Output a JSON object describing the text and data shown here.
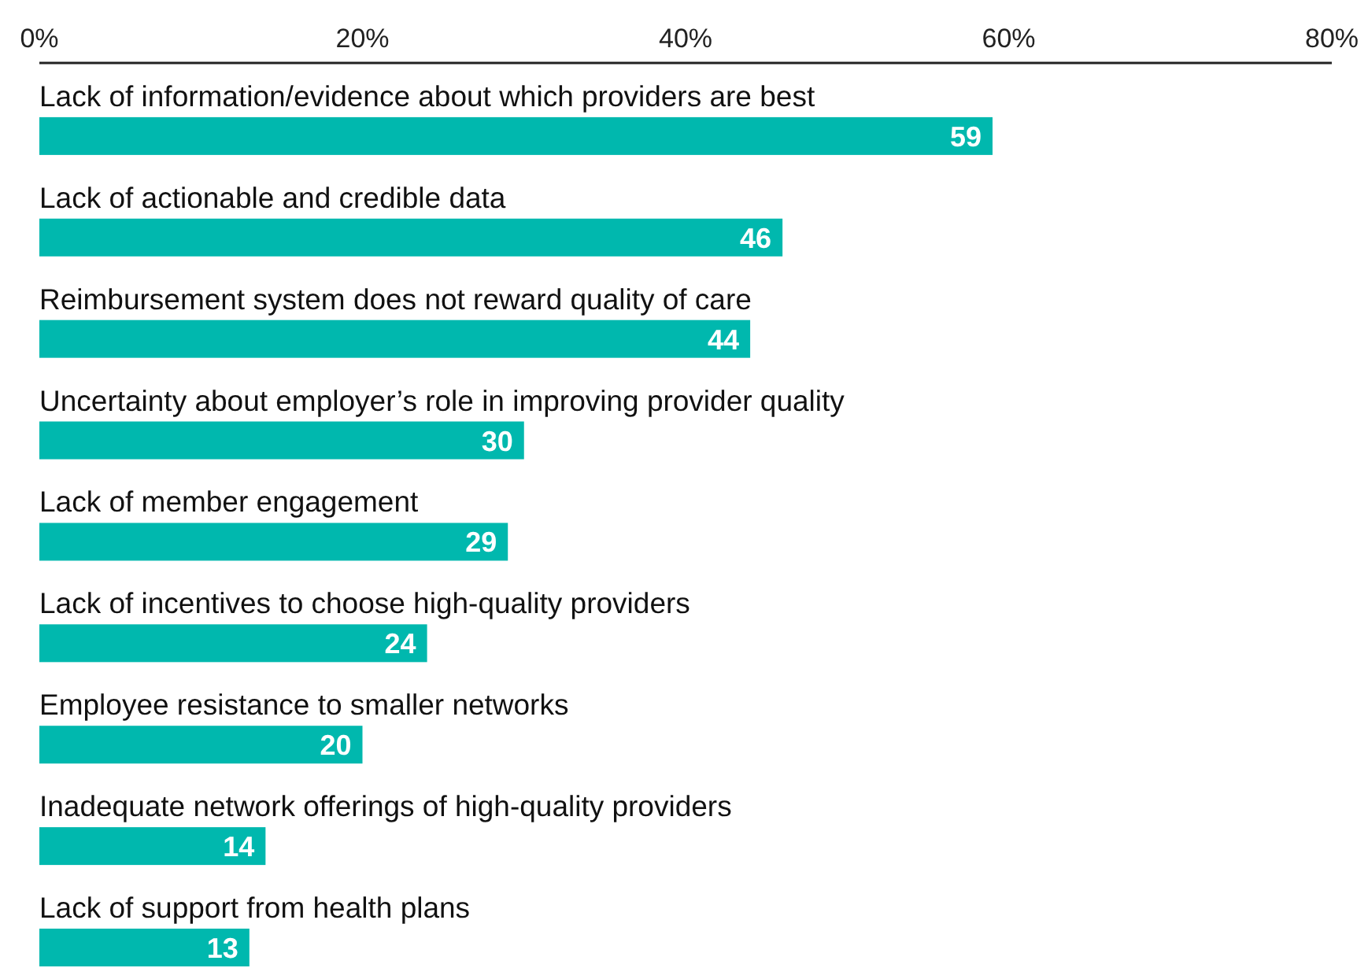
{
  "chart_data": {
    "type": "bar",
    "orientation": "horizontal",
    "categories": [
      "Lack of information/evidence about which providers are best",
      "Lack of actionable and credible data",
      "Reimbursement system does not reward quality of care",
      "Uncertainty about employer’s role in improving provider quality",
      "Lack of member engagement",
      "Lack of incentives to choose high-quality providers",
      "Employee resistance to smaller networks",
      "Inadequate network offerings of high-quality providers",
      "Lack of support from health plans"
    ],
    "values": [
      59,
      46,
      44,
      30,
      29,
      24,
      20,
      14,
      13
    ],
    "color": "#00b8ae",
    "xlim": [
      0,
      80
    ],
    "xticks": [
      {
        "value": 0,
        "label": "0%"
      },
      {
        "value": 20,
        "label": "20%"
      },
      {
        "value": 40,
        "label": "40%"
      },
      {
        "value": 60,
        "label": "60%"
      },
      {
        "value": 80,
        "label": "80%"
      }
    ],
    "data_labels": true,
    "grid": false
  }
}
